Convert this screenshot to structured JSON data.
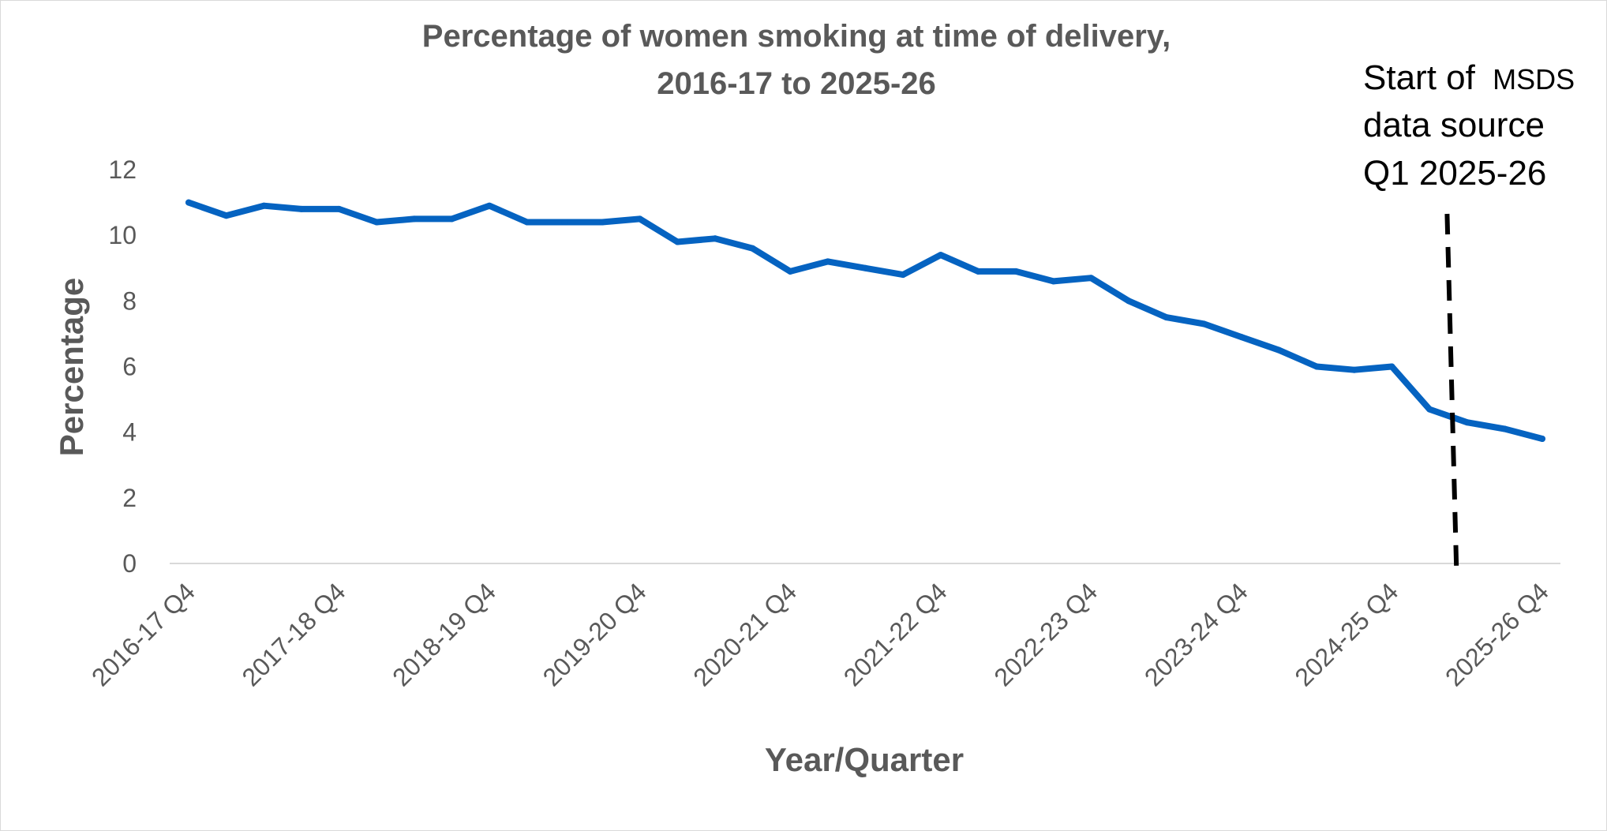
{
  "chart_data": {
    "type": "line",
    "title_lines": [
      "Percentage of women smoking at time of delivery,",
      "2016-17 to 2025-26"
    ],
    "xlabel": "Year/Quarter",
    "ylabel": "Percentage",
    "ylim": [
      0,
      12
    ],
    "y_ticks": [
      "0",
      "2",
      "4",
      "6",
      "8",
      "10",
      "12"
    ],
    "grid": false,
    "legend": "none",
    "x_tick_labels": [
      "2016-17 Q4",
      "2017-18 Q4",
      "2018-19 Q4",
      "2019-20 Q4",
      "2020-21 Q4",
      "2021-22 Q4",
      "2022-23 Q4",
      "2023-24 Q4",
      "2024-25  Q4",
      "2025-26  Q4"
    ],
    "categories": [
      "2016-17 Q4",
      "2017-18 Q1",
      "2017-18 Q2",
      "2017-18 Q3",
      "2017-18 Q4",
      "2018-19 Q1",
      "2018-19 Q2",
      "2018-19 Q3",
      "2018-19 Q4",
      "2019-20 Q1",
      "2019-20 Q2",
      "2019-20 Q3",
      "2019-20 Q4",
      "2020-21 Q1",
      "2020-21 Q2",
      "2020-21 Q3",
      "2020-21 Q4",
      "2021-22 Q1",
      "2021-22 Q2",
      "2021-22 Q3",
      "2021-22 Q4",
      "2022-23 Q1",
      "2022-23 Q2",
      "2022-23 Q3",
      "2022-23 Q4",
      "2023-24 Q1",
      "2023-24 Q2",
      "2023-24 Q3",
      "2023-24 Q4",
      "2024-25 Q1",
      "2024-25 Q2",
      "2024-25 Q3",
      "2024-25 Q4",
      "2025-26 Q1",
      "2025-26 Q2",
      "2025-26 Q3",
      "2025-26 Q4"
    ],
    "series": [
      {
        "values": [
          11.0,
          10.6,
          10.9,
          10.8,
          10.8,
          10.4,
          10.5,
          10.5,
          10.9,
          10.4,
          10.4,
          10.4,
          10.5,
          9.8,
          9.9,
          9.6,
          8.9,
          9.2,
          9.0,
          8.8,
          9.4,
          8.9,
          8.9,
          8.6,
          8.7,
          8.0,
          7.5,
          7.3,
          6.9,
          6.5,
          6.0,
          5.9,
          6.0,
          4.7,
          4.3,
          4.1,
          3.8
        ],
        "color": "#0563C1"
      }
    ],
    "annotation": {
      "lines": [
        "Start of",
        "MSDS",
        "data source",
        "Q1 2025-26"
      ],
      "marker_category_index": 33.7,
      "line_style": "dashed",
      "color": "#000000"
    }
  }
}
